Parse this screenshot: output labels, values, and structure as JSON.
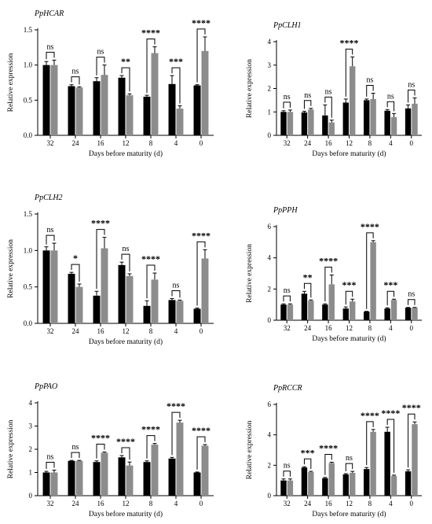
{
  "figure": {
    "xlabel": "Days before maturity (d)",
    "ylabel": "Relative expression",
    "colors": {
      "bar_a": "#000000",
      "bar_b": "#8c8c8c",
      "axis": "#000000"
    }
  },
  "chart_data": [
    {
      "type": "bar",
      "title": "PpHCAR",
      "xlabel": "Days before maturity (d)",
      "ylabel": "Relative expression",
      "categories": [
        "32",
        "24",
        "16",
        "12",
        "8",
        "4",
        "0"
      ],
      "yticks": [
        "0.0",
        "0.5",
        "1.0",
        "1.5"
      ],
      "ylim": [
        0,
        1.5
      ],
      "series": [
        {
          "values": [
            1.0,
            0.7,
            0.77,
            0.82,
            0.55,
            0.73,
            0.71
          ],
          "errors": [
            0.05,
            0.02,
            0.05,
            0.03,
            0.02,
            0.12,
            0.01
          ]
        },
        {
          "values": [
            1.0,
            0.68,
            0.86,
            0.57,
            1.17,
            0.38,
            1.2
          ],
          "errors": [
            0.07,
            0.01,
            0.14,
            0.02,
            0.09,
            0.04,
            0.2
          ]
        }
      ],
      "significance": [
        "ns",
        "ns",
        "ns",
        "**",
        "****",
        "***",
        "****"
      ]
    },
    {
      "type": "bar",
      "title": "PpCLH1",
      "xlabel": "Days before maturity (d)",
      "ylabel": "Relative expression",
      "categories": [
        "32",
        "24",
        "16",
        "12",
        "8",
        "4",
        "0"
      ],
      "yticks": [
        "0",
        "1",
        "2",
        "3",
        "4"
      ],
      "ylim": [
        0,
        4
      ],
      "series": [
        {
          "values": [
            1.0,
            0.98,
            0.85,
            1.4,
            1.5,
            1.05,
            1.15
          ],
          "errors": [
            0.05,
            0.05,
            0.45,
            0.15,
            0.05,
            0.05,
            0.15
          ]
        },
        {
          "values": [
            1.0,
            1.1,
            0.55,
            2.95,
            1.55,
            0.78,
            1.35
          ],
          "errors": [
            0.08,
            0.05,
            0.1,
            0.4,
            0.25,
            0.15,
            0.25
          ]
        }
      ],
      "significance": [
        "ns",
        "ns",
        "ns",
        "****",
        "ns",
        "ns",
        "ns"
      ]
    },
    {
      "type": "bar",
      "title": "PpCLH2",
      "xlabel": "Days before maturity (d)",
      "ylabel": "Relative expression",
      "categories": [
        "32",
        "24",
        "16",
        "12",
        "8",
        "4",
        "0"
      ],
      "yticks": [
        "0.0",
        "0.5",
        "1.0",
        "1.5"
      ],
      "ylim": [
        0,
        1.5
      ],
      "series": [
        {
          "values": [
            1.0,
            0.68,
            0.38,
            0.8,
            0.24,
            0.32,
            0.2
          ],
          "errors": [
            0.05,
            0.02,
            0.06,
            0.04,
            0.07,
            0.02,
            0.01
          ]
        },
        {
          "values": [
            1.0,
            0.5,
            1.03,
            0.65,
            0.6,
            0.31,
            0.89
          ],
          "errors": [
            0.1,
            0.04,
            0.15,
            0.03,
            0.09,
            0.01,
            0.12
          ]
        }
      ],
      "significance": [
        "ns",
        "*",
        "****",
        "ns",
        "****",
        "ns",
        "****"
      ]
    },
    {
      "type": "bar",
      "title": "PpPPH",
      "xlabel": "Days before maturity (d)",
      "ylabel": "Relative expression",
      "categories": [
        "32",
        "24",
        "16",
        "12",
        "8",
        "4",
        "0"
      ],
      "yticks": [
        "0",
        "2",
        "4",
        "6"
      ],
      "ylim": [
        0,
        6
      ],
      "series": [
        {
          "values": [
            1.0,
            1.7,
            1.0,
            0.75,
            0.55,
            0.75,
            0.8
          ],
          "errors": [
            0.05,
            0.15,
            0.05,
            0.1,
            0.02,
            0.05,
            0.02
          ]
        },
        {
          "values": [
            1.0,
            1.25,
            2.3,
            1.2,
            5.0,
            1.3,
            0.8
          ],
          "errors": [
            0.05,
            0.05,
            0.6,
            0.15,
            0.1,
            0.05,
            0.02
          ]
        }
      ],
      "significance": [
        "ns",
        "**",
        "****",
        "***",
        "****",
        "***",
        "ns"
      ]
    },
    {
      "type": "bar",
      "title": "PpPAO",
      "xlabel": "Days before maturity (d)",
      "ylabel": "Relative expression",
      "categories": [
        "32",
        "24",
        "16",
        "12",
        "8",
        "4",
        "0"
      ],
      "yticks": [
        "0",
        "1",
        "2",
        "3",
        "4"
      ],
      "ylim": [
        0,
        4
      ],
      "series": [
        {
          "values": [
            1.0,
            1.5,
            1.45,
            1.65,
            1.45,
            1.6,
            1.0
          ],
          "errors": [
            0.05,
            0.02,
            0.05,
            0.08,
            0.05,
            0.05,
            0.02
          ]
        },
        {
          "values": [
            1.0,
            1.5,
            1.85,
            1.3,
            2.2,
            3.15,
            2.15
          ],
          "errors": [
            0.1,
            0.02,
            0.03,
            0.15,
            0.05,
            0.1,
            0.05
          ]
        }
      ],
      "significance": [
        "ns",
        "ns",
        "****",
        "****",
        "****",
        "****",
        "****"
      ]
    },
    {
      "type": "bar",
      "title": "PpRCCR",
      "xlabel": "Days before maturity (d)",
      "ylabel": "Relative expression",
      "categories": [
        "32",
        "24",
        "16",
        "12",
        "8",
        "4",
        "0"
      ],
      "yticks": [
        "0",
        "2",
        "4",
        "6"
      ],
      "ylim": [
        0,
        6
      ],
      "series": [
        {
          "values": [
            1.0,
            1.85,
            1.15,
            1.4,
            1.75,
            4.2,
            1.6
          ],
          "errors": [
            0.1,
            0.05,
            0.05,
            0.05,
            0.1,
            0.3,
            0.1
          ]
        },
        {
          "values": [
            1.0,
            1.55,
            2.15,
            1.5,
            4.2,
            1.3,
            4.7
          ],
          "errors": [
            0.1,
            0.05,
            0.05,
            0.1,
            0.15,
            0.05,
            0.15
          ]
        }
      ],
      "significance": [
        "ns",
        "***",
        "****",
        "ns",
        "****",
        "****",
        "****"
      ]
    }
  ]
}
